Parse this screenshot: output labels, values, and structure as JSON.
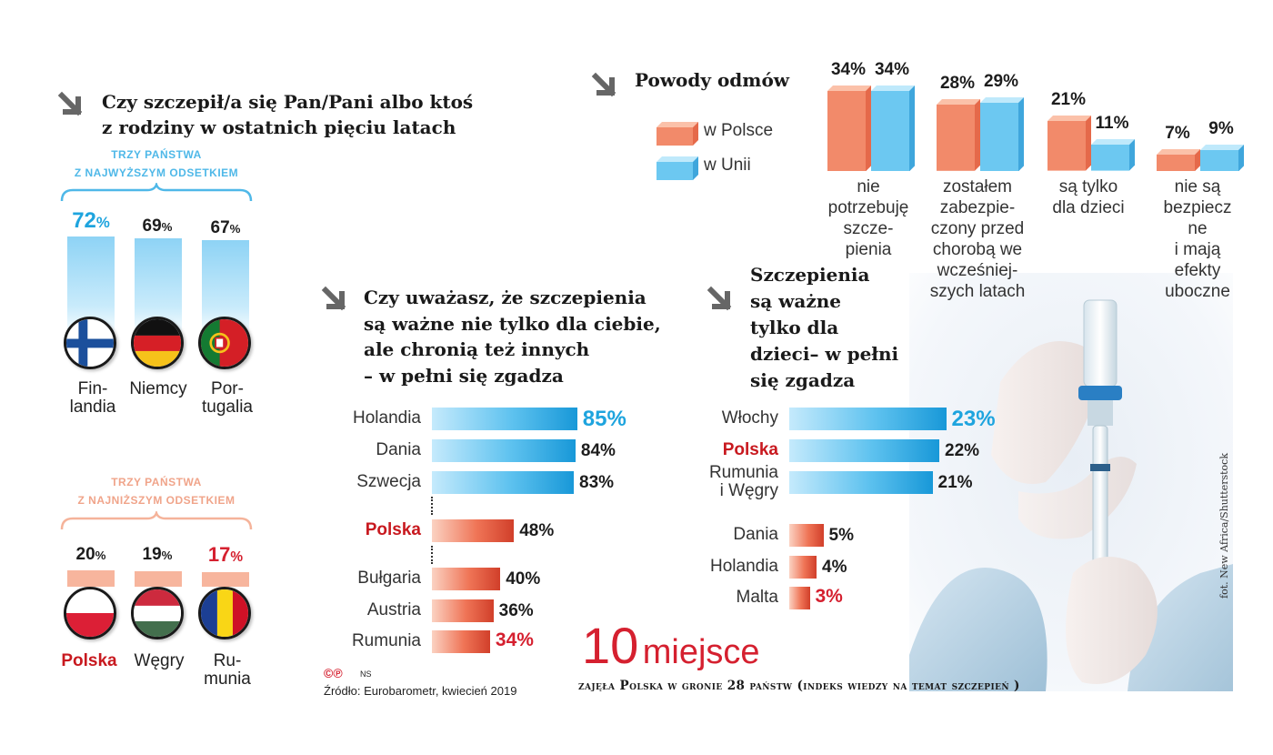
{
  "colors": {
    "blue": "#1ea4de",
    "salmon": "#f28a6a",
    "red": "#d5202f"
  },
  "section_vaccinated": {
    "title_line1": "Czy szczepił/a się Pan/Pani albo ktoś",
    "title_line2": "z rodziny w ostatnich pięciu latach",
    "top_caption_line1": "TRZY PAŃSTWA",
    "top_caption_line2": "Z NAJWYŻSZYM ODSETKIEM",
    "low_caption_line1": "TRZY PAŃSTWA",
    "low_caption_line2": "Z NAJNIŻSZYM ODSETKIEM",
    "top": [
      {
        "pct": "72",
        "name": "Fin-\nlandia",
        "flag": "finland-flag-icon"
      },
      {
        "pct": "69",
        "name": "Niemcy",
        "flag": "germany-flag-icon"
      },
      {
        "pct": "67",
        "name": "Por-\ntugalia",
        "flag": "portugal-flag-icon"
      }
    ],
    "low": [
      {
        "pct": "20",
        "name": "Polska",
        "flag": "poland-flag-icon"
      },
      {
        "pct": "19",
        "name": "Węgry",
        "flag": "hungary-flag-icon"
      },
      {
        "pct": "17",
        "name": "Ru-\nmunia",
        "flag": "romania-flag-icon"
      }
    ],
    "percent_sign": "%"
  },
  "section_protect": {
    "title_line1": "Czy uważasz, że szczepienia",
    "title_line2": "są ważne nie tylko dla ciebie,",
    "title_line3": "ale chronią też innych",
    "title_line4": "– w pełni się zgadza"
  },
  "section_children": {
    "title_line1": "Szczepienia",
    "title_line2": "są ważne",
    "title_line3": "tylko dla",
    "title_line4": "dzieci– w pełni",
    "title_line5": "się zgadza"
  },
  "section_reasons": {
    "title": "Powody odmów",
    "legend_poland": "w Polsce",
    "legend_eu": "w Unii"
  },
  "chart_data": [
    {
      "type": "bar",
      "title": "Czy szczepił/a się Pan/Pani albo ktoś z rodziny w ostatnich pięciu latach",
      "categories": [
        "Finlandia",
        "Niemcy",
        "Portugalia",
        "Polska",
        "Węgry",
        "Rumunia"
      ],
      "values": [
        72,
        69,
        67,
        20,
        19,
        17
      ],
      "unit": "%"
    },
    {
      "type": "bar",
      "orientation": "horizontal",
      "title": "Czy uważasz, że szczepienia są ważne nie tylko dla ciebie, ale chronią też innych – w pełni się zgadza",
      "categories": [
        "Holandia",
        "Dania",
        "Szwecja",
        "Polska",
        "Bułgaria",
        "Austria",
        "Rumunia"
      ],
      "values": [
        85,
        84,
        83,
        48,
        40,
        36,
        34
      ],
      "unit": "%"
    },
    {
      "type": "bar",
      "orientation": "horizontal",
      "title": "Szczepienia są ważne tylko dla dzieci – w pełni się zgadza",
      "categories": [
        "Włochy",
        "Polska",
        "Rumunia\ni Węgry",
        "Dania",
        "Holandia",
        "Malta"
      ],
      "values": [
        23,
        22,
        21,
        5,
        4,
        3
      ],
      "unit": "%"
    },
    {
      "type": "bar",
      "title": "Powody odmów",
      "categories": [
        "nie\npotrzebuję\nszcze-\npienia",
        "zostałem\nzabezpie-\nczony przed\nchorobą we\nwcześniej-\nszych latach",
        "są tylko\ndla dzieci",
        "nie są\nbezpiecz\nne\ni mają\nefekty\nuboczne"
      ],
      "series": [
        {
          "name": "w Polsce",
          "values": [
            34,
            28,
            21,
            7
          ]
        },
        {
          "name": "w Unii",
          "values": [
            34,
            29,
            11,
            9
          ]
        }
      ],
      "unit": "%"
    }
  ],
  "footer": {
    "big_number": "10",
    "big_word": "miejsce",
    "subtitle": "zajęła Polska w gronie 28 państw (indeks wiedzy na temat szczepień )",
    "cp_logo": "©℗",
    "author": "NS",
    "source": "Źródło: Eurobarometr, kwiecień 2019",
    "credit": "fot. New Africa/Shutterstock"
  }
}
